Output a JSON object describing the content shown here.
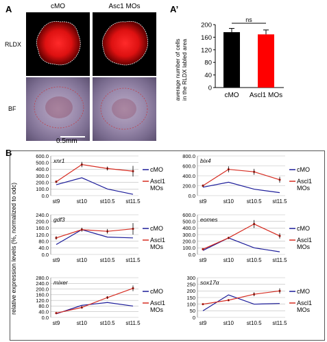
{
  "panel_a": {
    "letter": "A",
    "col_labels": [
      "cMO",
      "Asc1 MOs"
    ],
    "row_labels": [
      "RLDX",
      "BF"
    ],
    "scale_bar": "0.5mm"
  },
  "panel_a_prime": {
    "letter": "A’"
  },
  "panel_b": {
    "letter": "B",
    "y_axis_label": "relative expression levels (%, normalized to odc)"
  },
  "colors": {
    "cmo_line": "#1a1a99",
    "ascl1_line": "#d62a1f",
    "bar_cmo": "#000000",
    "bar_ascl1": "#ff0000"
  },
  "chart_data": [
    {
      "type": "bar",
      "ylabel": "average number of cells in the RLDX labled area",
      "categories": [
        "cMO",
        "Ascl1 MOs"
      ],
      "values": [
        176,
        169
      ],
      "errors": [
        12,
        14
      ],
      "ylim": [
        0,
        200
      ],
      "yticks": [
        "0",
        "40",
        "80",
        "120",
        "160",
        "200"
      ],
      "annotation": "ns"
    },
    {
      "type": "line",
      "title": "xnr1",
      "categories": [
        "st9",
        "st10",
        "st10.5",
        "st11.5"
      ],
      "ylim": [
        0,
        600
      ],
      "yticks": [
        "0.0",
        "100.0",
        "200.0",
        "300.0",
        "400.0",
        "500.0",
        "600.0"
      ],
      "series": [
        {
          "name": "cMO",
          "values": [
            165,
            270,
            100,
            20
          ]
        },
        {
          "name": "Ascl1 MOs",
          "values": [
            210,
            470,
            410,
            370
          ],
          "errors": [
            20,
            40,
            30,
            80
          ]
        }
      ]
    },
    {
      "type": "line",
      "title": "bix4",
      "categories": [
        "st9",
        "st10",
        "st10.5",
        "st11.5"
      ],
      "ylim": [
        0,
        800
      ],
      "yticks": [
        "0.0",
        "200.0",
        "400.0",
        "600.0",
        "800.0"
      ],
      "series": [
        {
          "name": "cMO",
          "values": [
            170,
            270,
            130,
            60
          ]
        },
        {
          "name": "Ascl1 MOs",
          "values": [
            200,
            530,
            480,
            320
          ],
          "errors": [
            25,
            60,
            60,
            60
          ]
        }
      ]
    },
    {
      "type": "line",
      "title": "gdf3",
      "categories": [
        "st9",
        "st10",
        "st10.5",
        "st11.5"
      ],
      "ylim": [
        0,
        240
      ],
      "yticks": [
        "0.0",
        "40.0",
        "80.0",
        "120.0",
        "160.0",
        "200.0",
        "240.0"
      ],
      "series": [
        {
          "name": "cMO",
          "values": [
            60,
            150,
            105,
            100
          ]
        },
        {
          "name": "Ascl1 MOs",
          "values": [
            100,
            150,
            140,
            155
          ],
          "errors": [
            10,
            12,
            14,
            35
          ]
        }
      ]
    },
    {
      "type": "line",
      "title": "eomes",
      "categories": [
        "st9",
        "st10",
        "st10.5",
        "st11.5"
      ],
      "ylim": [
        0,
        600
      ],
      "yticks": [
        "0.0",
        "100.0",
        "200.0",
        "300.0",
        "400.0",
        "500.0",
        "600.0"
      ],
      "series": [
        {
          "name": "cMO",
          "values": [
            60,
            250,
            100,
            40
          ]
        },
        {
          "name": "Ascl1 MOs",
          "values": [
            80,
            250,
            460,
            280
          ],
          "errors": [
            8,
            15,
            60,
            40
          ]
        }
      ]
    },
    {
      "type": "line",
      "title": "mixer",
      "categories": [
        "st9",
        "st10",
        "st10.5",
        "st11.5"
      ],
      "ylim": [
        0,
        280
      ],
      "yticks": [
        "0.0",
        "40.0",
        "80.0",
        "120.0",
        "160.0",
        "200.0",
        "240.0",
        "280.0"
      ],
      "series": [
        {
          "name": "cMO",
          "values": [
            25,
            85,
            105,
            80
          ]
        },
        {
          "name": "Ascl1 MOs",
          "values": [
            30,
            70,
            140,
            205
          ],
          "errors": [
            5,
            8,
            10,
            20
          ]
        }
      ]
    },
    {
      "type": "line",
      "title": "sox17α",
      "categories": [
        "st9",
        "st10",
        "st10.5",
        "st11.5"
      ],
      "ylim": [
        0,
        300
      ],
      "yticks": [
        "0",
        "50",
        "100",
        "150",
        "200",
        "250",
        "300"
      ],
      "series": [
        {
          "name": "cMO",
          "values": [
            50,
            170,
            100,
            105
          ]
        },
        {
          "name": "Ascl1 MOs",
          "values": [
            100,
            130,
            175,
            200
          ],
          "errors": [
            5,
            5,
            15,
            20
          ]
        }
      ]
    }
  ]
}
